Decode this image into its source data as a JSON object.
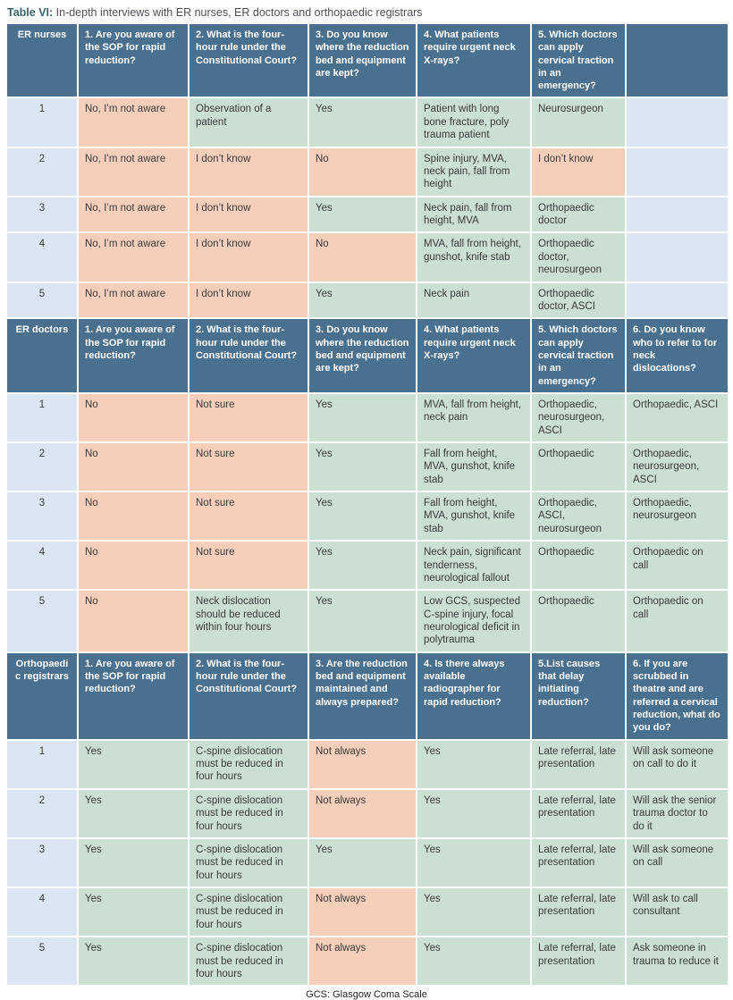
{
  "title": {
    "label": "Table VI:",
    "text": " In-depth interviews with ER nurses, ER doctors and orthopaedic registrars"
  },
  "footnote": "GCS: Glasgow Coma Scale",
  "colors": {
    "header_blue": "#4a708f",
    "cell_green": "#cbdfd2",
    "cell_salmon": "#f5cfba",
    "cell_light_blue": "#dce6f2"
  },
  "sections": [
    {
      "group": "ER nurses",
      "headers": [
        "1. Are you aware of the SOP for rapid reduction?",
        "2. What is the four-hour rule under the Constitutional Court?",
        "3. Do you know where the reduction bed and equipment are kept?",
        "4. What patients require urgent neck X-rays?",
        "5. Which doctors can apply cervical traction in an emergency?",
        ""
      ],
      "rows": [
        {
          "id": "1",
          "cells": [
            {
              "text": "No, I’m not aware",
              "bg": "salmon"
            },
            {
              "text": "Observation of a patient",
              "bg": "green"
            },
            {
              "text": "Yes",
              "bg": "green"
            },
            {
              "text": "Patient with long bone fracture, poly trauma patient",
              "bg": "green"
            },
            {
              "text": "Neurosurgeon",
              "bg": "green"
            },
            {
              "text": "",
              "bg": "blue"
            }
          ]
        },
        {
          "id": "2",
          "cells": [
            {
              "text": "No, I’m not aware",
              "bg": "salmon"
            },
            {
              "text": "I don’t know",
              "bg": "salmon"
            },
            {
              "text": "No",
              "bg": "salmon"
            },
            {
              "text": "Spine injury, MVA, neck pain, fall from height",
              "bg": "green"
            },
            {
              "text": "I don’t know",
              "bg": "salmon"
            },
            {
              "text": "",
              "bg": "blue"
            }
          ]
        },
        {
          "id": "3",
          "cells": [
            {
              "text": "No, I’m not aware",
              "bg": "salmon"
            },
            {
              "text": "I don’t know",
              "bg": "salmon"
            },
            {
              "text": "Yes",
              "bg": "green"
            },
            {
              "text": "Neck pain, fall from height, MVA",
              "bg": "green"
            },
            {
              "text": "Orthopaedic doctor",
              "bg": "green"
            },
            {
              "text": "",
              "bg": "blue"
            }
          ]
        },
        {
          "id": "4",
          "cells": [
            {
              "text": "No, I’m not aware",
              "bg": "salmon"
            },
            {
              "text": "I don’t know",
              "bg": "salmon"
            },
            {
              "text": "No",
              "bg": "salmon"
            },
            {
              "text": "MVA, fall from height, gunshot, knife stab",
              "bg": "green"
            },
            {
              "text": "Orthopaedic doctor, neurosurgeon",
              "bg": "green"
            },
            {
              "text": "",
              "bg": "blue"
            }
          ]
        },
        {
          "id": "5",
          "cells": [
            {
              "text": "No, I’m not aware",
              "bg": "salmon"
            },
            {
              "text": "I don’t know",
              "bg": "salmon"
            },
            {
              "text": "Yes",
              "bg": "green"
            },
            {
              "text": "Neck pain",
              "bg": "green"
            },
            {
              "text": "Orthopaedic doctor, ASCI",
              "bg": "green"
            },
            {
              "text": "",
              "bg": "blue"
            }
          ]
        }
      ]
    },
    {
      "group": "ER doctors",
      "headers": [
        "1. Are you aware of the SOP for rapid reduction?",
        "2. What is the four-hour rule under the Constitutional Court?",
        "3. Do you know where the reduction bed and equipment are kept?",
        "4. What patients require urgent neck X-rays?",
        "5. Which doctors can apply cervical traction in an emergency?",
        "6. Do you know who to refer to for neck dislocations?"
      ],
      "rows": [
        {
          "id": "1",
          "cells": [
            {
              "text": "No",
              "bg": "salmon"
            },
            {
              "text": "Not sure",
              "bg": "salmon"
            },
            {
              "text": "Yes",
              "bg": "green"
            },
            {
              "text": "MVA, fall from height, neck pain",
              "bg": "green"
            },
            {
              "text": "Orthopaedic, neurosurgeon, ASCI",
              "bg": "green"
            },
            {
              "text": "Orthopaedic, ASCI",
              "bg": "green"
            }
          ]
        },
        {
          "id": "2",
          "cells": [
            {
              "text": "No",
              "bg": "salmon"
            },
            {
              "text": "Not sure",
              "bg": "salmon"
            },
            {
              "text": "Yes",
              "bg": "green"
            },
            {
              "text": "Fall from height, MVA, gunshot, knife stab",
              "bg": "green"
            },
            {
              "text": "Orthopaedic",
              "bg": "green"
            },
            {
              "text": "Orthopaedic, neurosurgeon, ASCI",
              "bg": "green"
            }
          ]
        },
        {
          "id": "3",
          "cells": [
            {
              "text": "No",
              "bg": "salmon"
            },
            {
              "text": "Not sure",
              "bg": "salmon"
            },
            {
              "text": "Yes",
              "bg": "green"
            },
            {
              "text": "Fall from height, MVA, gunshot, knife stab",
              "bg": "green"
            },
            {
              "text": "Orthopaedic, ASCI, neurosurgeon",
              "bg": "green"
            },
            {
              "text": "Orthopaedic, neurosurgeon",
              "bg": "green"
            }
          ]
        },
        {
          "id": "4",
          "cells": [
            {
              "text": "No",
              "bg": "salmon"
            },
            {
              "text": "Not sure",
              "bg": "salmon"
            },
            {
              "text": "Yes",
              "bg": "green"
            },
            {
              "text": "Neck pain, significant tenderness, neurological fallout",
              "bg": "green"
            },
            {
              "text": "Orthopaedic",
              "bg": "green"
            },
            {
              "text": "Orthopaedic on call",
              "bg": "green"
            }
          ]
        },
        {
          "id": "5",
          "cells": [
            {
              "text": "No",
              "bg": "salmon"
            },
            {
              "text": "Neck dislocation should be reduced within four hours",
              "bg": "green"
            },
            {
              "text": "Yes",
              "bg": "green"
            },
            {
              "text": "Low GCS, suspected C-spine injury, focal neurological deficit in polytrauma",
              "bg": "green"
            },
            {
              "text": "Orthopaedic",
              "bg": "green"
            },
            {
              "text": "Orthopaedic on call",
              "bg": "green"
            }
          ]
        }
      ]
    },
    {
      "group": "Orthopaedic registrars",
      "headers": [
        "1. Are you aware of the SOP for rapid reduction?",
        "2. What is the four-hour rule under the Constitutional Court?",
        "3. Are the reduction bed and equipment maintained and always prepared?",
        "4. Is there always available radiographer for rapid reduction?",
        "5.List causes that delay initiating reduction?",
        "6. If you are scrubbed in theatre and are referred a cervical reduction, what do you do?"
      ],
      "rows": [
        {
          "id": "1",
          "cells": [
            {
              "text": "Yes",
              "bg": "green"
            },
            {
              "text": "C-spine dislocation must be reduced in four hours",
              "bg": "green"
            },
            {
              "text": "Not always",
              "bg": "salmon"
            },
            {
              "text": "Yes",
              "bg": "green"
            },
            {
              "text": "Late referral, late presentation",
              "bg": "green"
            },
            {
              "text": "Will ask someone on call to do it",
              "bg": "green"
            }
          ]
        },
        {
          "id": "2",
          "cells": [
            {
              "text": "Yes",
              "bg": "green"
            },
            {
              "text": "C-spine dislocation must be reduced in four hours",
              "bg": "green"
            },
            {
              "text": "Not always",
              "bg": "salmon"
            },
            {
              "text": "Yes",
              "bg": "green"
            },
            {
              "text": "Late referral, late presentation",
              "bg": "green"
            },
            {
              "text": "Will ask the senior trauma doctor to do it",
              "bg": "green"
            }
          ]
        },
        {
          "id": "3",
          "cells": [
            {
              "text": "Yes",
              "bg": "green"
            },
            {
              "text": "C-spine dislocation must be reduced in four hours",
              "bg": "green"
            },
            {
              "text": "Yes",
              "bg": "green"
            },
            {
              "text": "Yes",
              "bg": "green"
            },
            {
              "text": "Late referral, late presentation",
              "bg": "green"
            },
            {
              "text": "Will ask someone on call",
              "bg": "green"
            }
          ]
        },
        {
          "id": "4",
          "cells": [
            {
              "text": "Yes",
              "bg": "green"
            },
            {
              "text": "C-spine dislocation must be reduced in four hours",
              "bg": "green"
            },
            {
              "text": "Not always",
              "bg": "salmon"
            },
            {
              "text": "Yes",
              "bg": "green"
            },
            {
              "text": "Late referral, late presentation",
              "bg": "green"
            },
            {
              "text": "Will ask to call consultant",
              "bg": "green"
            }
          ]
        },
        {
          "id": "5",
          "cells": [
            {
              "text": "Yes",
              "bg": "green"
            },
            {
              "text": "C-spine dislocation must be reduced in four hours",
              "bg": "green"
            },
            {
              "text": "Not always",
              "bg": "salmon"
            },
            {
              "text": "Yes",
              "bg": "green"
            },
            {
              "text": "Late referral, late presentation",
              "bg": "green"
            },
            {
              "text": "Ask someone in trauma to reduce it",
              "bg": "green"
            }
          ]
        }
      ]
    }
  ]
}
